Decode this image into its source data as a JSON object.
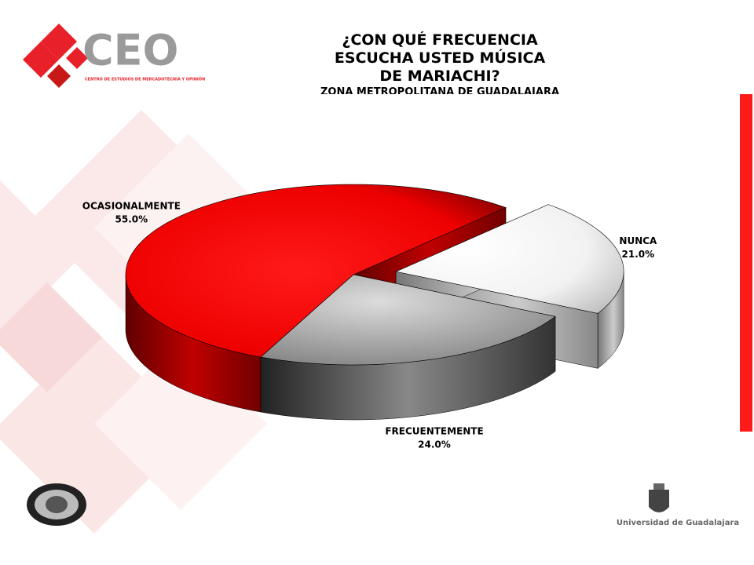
{
  "logo": {
    "name": "CEO",
    "tagline": "CENTRO DE ESTUDIOS DE MERCADOTECNIA Y OPINIÓN"
  },
  "footer": {
    "university": "Universidad de Guadalajara"
  },
  "chart_data": {
    "type": "pie",
    "title": "¿CON QUÉ FRECUENCIA ESCUCHA USTED MÚSICA DE MARIACHI?",
    "subtitle": "ZONA METROPOLITANA DE GUADALAJARA",
    "categories": [
      "OCASIONALMENTE",
      "FRECUENTEMENTE",
      "NUNCA"
    ],
    "values": [
      55,
      24,
      21
    ],
    "value_labels": [
      "55.0%",
      "24.0%",
      "21.0%"
    ],
    "colors": [
      "#ff0000",
      "#9a9a9a",
      "#f4f4f4"
    ]
  }
}
